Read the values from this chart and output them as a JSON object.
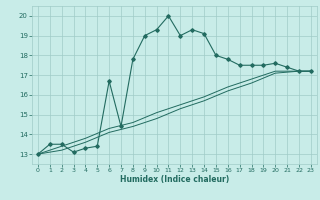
{
  "xlabel": "Humidex (Indice chaleur)",
  "bg_color": "#c8ece8",
  "grid_color": "#a0ccc8",
  "line_color": "#226b60",
  "xlim": [
    -0.5,
    23.5
  ],
  "ylim": [
    12.5,
    20.5
  ],
  "xticks": [
    0,
    1,
    2,
    3,
    4,
    5,
    6,
    7,
    8,
    9,
    10,
    11,
    12,
    13,
    14,
    15,
    16,
    17,
    18,
    19,
    20,
    21,
    22,
    23
  ],
  "yticks": [
    13,
    14,
    15,
    16,
    17,
    18,
    19,
    20
  ],
  "line1_x": [
    0,
    1,
    2,
    3,
    4,
    5,
    6,
    7,
    8,
    9,
    10,
    11,
    12,
    13,
    14,
    15,
    16,
    17,
    18,
    19,
    20,
    21,
    22,
    23
  ],
  "line1_y": [
    13.0,
    13.5,
    13.5,
    13.1,
    13.3,
    13.4,
    16.7,
    14.4,
    17.8,
    19.0,
    19.3,
    20.0,
    19.0,
    19.3,
    19.1,
    18.0,
    17.8,
    17.5,
    17.5,
    17.5,
    17.6,
    17.4,
    17.2,
    17.2
  ],
  "line2_x": [
    0,
    2,
    4,
    6,
    8,
    10,
    12,
    14,
    16,
    18,
    20,
    22,
    23
  ],
  "line2_y": [
    13.0,
    13.4,
    13.8,
    14.3,
    14.6,
    15.1,
    15.5,
    15.9,
    16.4,
    16.8,
    17.2,
    17.2,
    17.2
  ],
  "line3_x": [
    0,
    2,
    4,
    6,
    8,
    10,
    12,
    14,
    16,
    18,
    20,
    22,
    23
  ],
  "line3_y": [
    13.0,
    13.2,
    13.6,
    14.1,
    14.4,
    14.8,
    15.3,
    15.7,
    16.2,
    16.6,
    17.1,
    17.2,
    17.2
  ]
}
